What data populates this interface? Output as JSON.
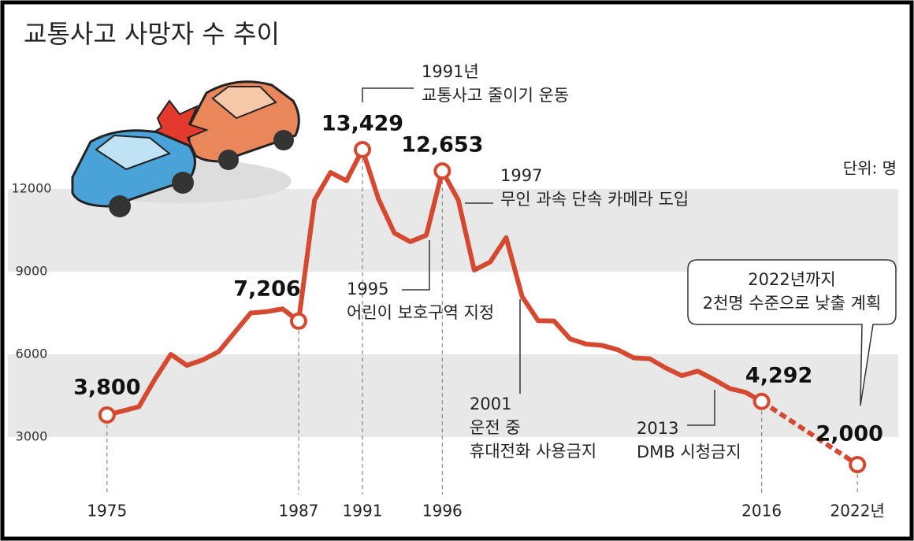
{
  "chart_data": {
    "type": "line",
    "title": "교통사고 사망자 수 추이",
    "unit_label": "단위: 명",
    "xlim": [
      1972,
      2025
    ],
    "ylim": [
      1000,
      17000
    ],
    "xticks": [
      1975,
      1987,
      1991,
      1996,
      2016,
      {
        "value": 2022,
        "label": "2022년"
      }
    ],
    "yticks": [
      3000,
      6000,
      9000,
      12000
    ],
    "banded_grid": true,
    "series": [
      {
        "color": "#d4492f",
        "style": "solid",
        "x": [
          1975,
          1976,
          1977,
          1978,
          1979,
          1980,
          1981,
          1982,
          1983,
          1984,
          1985,
          1986,
          1987,
          1988,
          1989,
          1990,
          1991,
          1992,
          1993,
          1994,
          1995,
          1996,
          1997,
          1998,
          1999,
          2000,
          2001,
          2002,
          2003,
          2004,
          2005,
          2006,
          2007,
          2008,
          2009,
          2010,
          2011,
          2012,
          2013,
          2014,
          2015,
          2016
        ],
        "values": [
          3800,
          3950,
          4100,
          5100,
          6000,
          5600,
          5800,
          6100,
          6800,
          7500,
          7550,
          7650,
          7206,
          11600,
          12600,
          12300,
          13429,
          11640,
          10400,
          10087,
          10323,
          12653,
          11603,
          9057,
          9353,
          10236,
          8097,
          7222,
          7212,
          6563,
          6376,
          6327,
          6166,
          5870,
          5838,
          5505,
          5229,
          5392,
          5092,
          4762,
          4621,
          4292
        ],
        "value_labels": [
          "3,800",
          null,
          null,
          null,
          null,
          null,
          null,
          null,
          null,
          null,
          null,
          null,
          "7,206",
          null,
          null,
          null,
          "13,429",
          null,
          null,
          null,
          null,
          "12,653",
          null,
          null,
          null,
          null,
          null,
          null,
          null,
          null,
          null,
          null,
          null,
          null,
          null,
          null,
          null,
          null,
          null,
          null,
          null,
          "4,292"
        ]
      },
      {
        "color": "#d4492f",
        "style": "dashed",
        "x": [
          2016,
          2022
        ],
        "values": [
          4292,
          2000
        ],
        "value_labels": [
          null,
          "2,000"
        ]
      }
    ],
    "annotations": [
      {
        "lines": [
          "1991년",
          "교통사고 줄이기 운동"
        ]
      },
      {
        "lines": [
          "1997",
          "무인 과속 단속 카메라 도입"
        ]
      },
      {
        "lines": [
          "1995",
          "어린이 보호구역 지정"
        ]
      },
      {
        "lines": [
          "2001",
          "운전 중",
          "휴대전화 사용금지"
        ]
      },
      {
        "lines": [
          "2013",
          "DMB 시청금지"
        ]
      },
      {
        "lines": [
          "2022년까지",
          "2천명 수준으로 낮출 계획"
        ]
      }
    ]
  }
}
